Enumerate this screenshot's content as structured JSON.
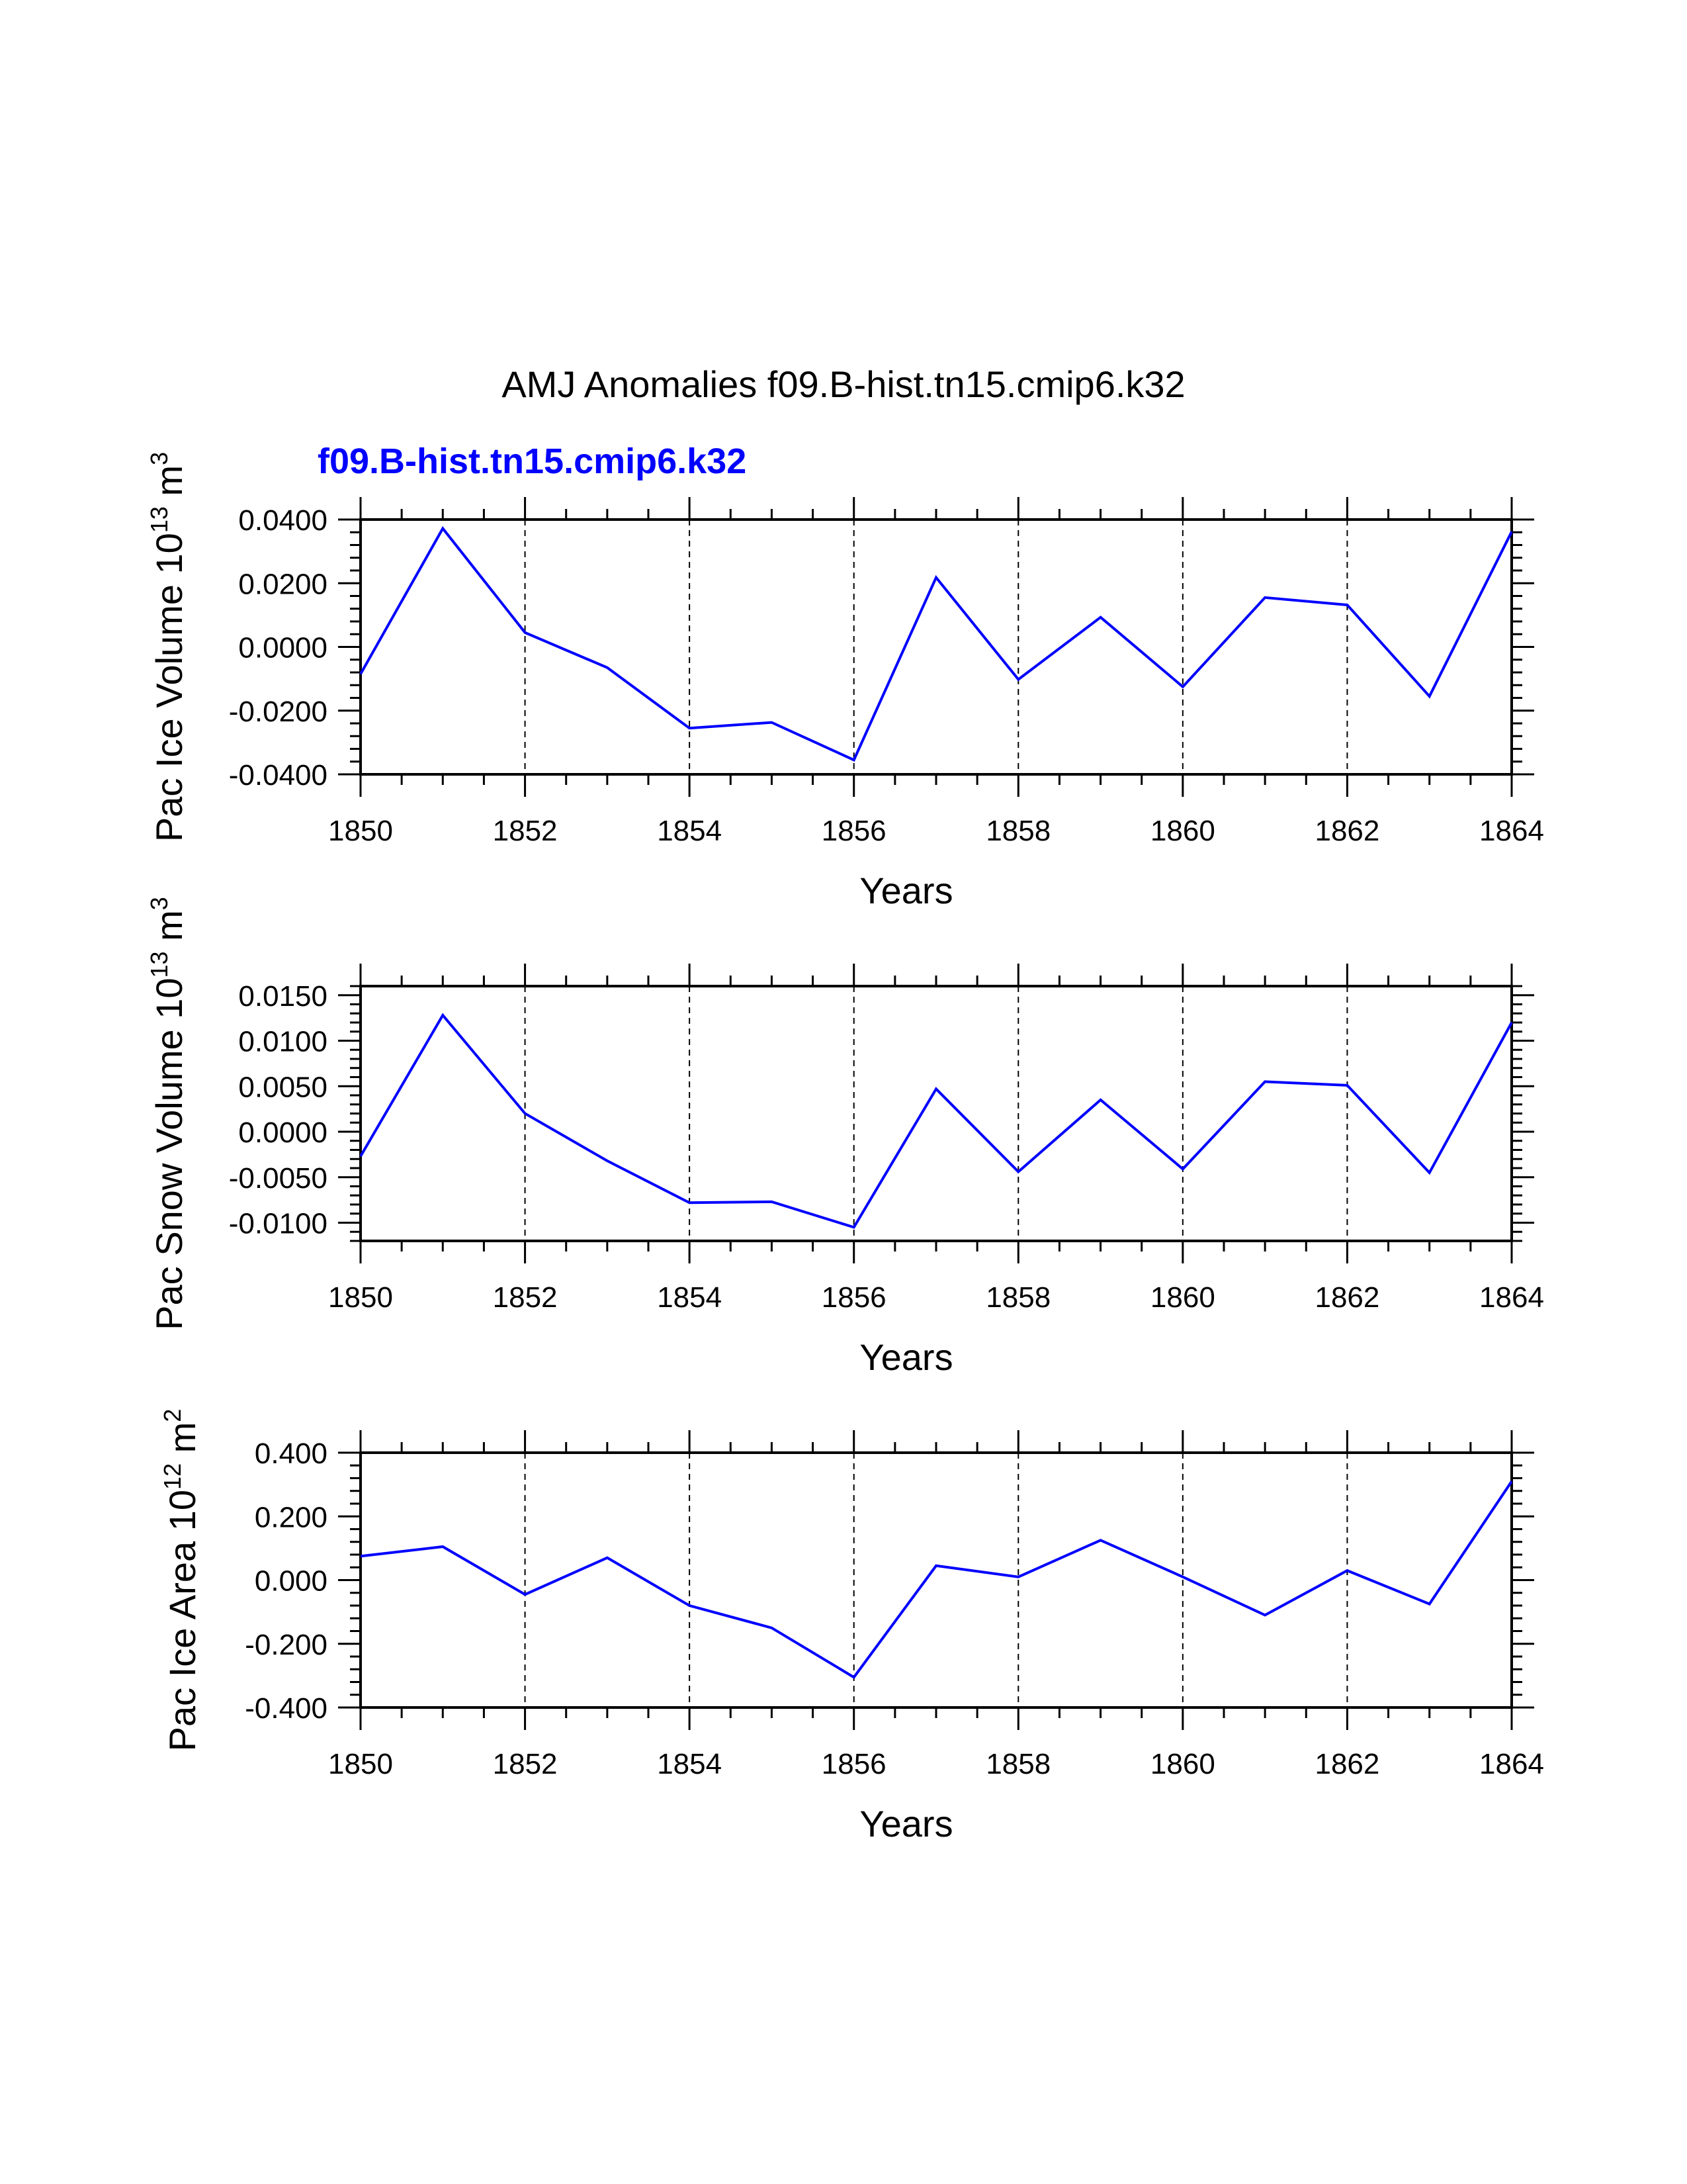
{
  "figure": {
    "title": "AMJ Anomalies f09.B-hist.tn15.cmip6.k32",
    "case_label": "f09.B-hist.tn15.cmip6.k32",
    "case_color": "#0000ff",
    "line_color": "#0000ff"
  },
  "chart_data": [
    {
      "type": "line",
      "ylabel": "Pac Ice Volume 10",
      "ylabel_exp": "13",
      "ylabel_unit": " m",
      "ylabel_unit_exp": "3",
      "xlabel": "Years",
      "xlim": [
        1850,
        1864
      ],
      "ylim": [
        -0.04,
        0.04
      ],
      "yticks": [
        0.04,
        0.02,
        0.0,
        -0.02,
        -0.04
      ],
      "ytick_labels": [
        "0.0400",
        "0.0200",
        "0.0000",
        "-0.0200",
        "-0.0400"
      ],
      "xticks": [
        1850,
        1852,
        1854,
        1856,
        1858,
        1860,
        1862,
        1864
      ],
      "xtick_labels": [
        "1850",
        "1852",
        "1854",
        "1856",
        "1858",
        "1860",
        "1862",
        "1864"
      ],
      "grid_x": [
        1852,
        1854,
        1856,
        1858,
        1860,
        1862
      ],
      "series": [
        {
          "name": "f09.B-hist.tn15.cmip6.k32",
          "x": [
            1850,
            1851,
            1852,
            1853,
            1854,
            1855,
            1856,
            1857,
            1858,
            1859,
            1860,
            1861,
            1862,
            1863,
            1864
          ],
          "values": [
            -0.0085,
            0.0372,
            0.0045,
            -0.0065,
            -0.0255,
            -0.0237,
            -0.0355,
            0.0218,
            -0.0102,
            0.0093,
            -0.0125,
            0.0155,
            0.0132,
            -0.0155,
            0.0362
          ]
        }
      ]
    },
    {
      "type": "line",
      "ylabel": "Pac Snow Volume 10",
      "ylabel_exp": "13",
      "ylabel_unit": " m",
      "ylabel_unit_exp": "3",
      "xlabel": "Years",
      "xlim": [
        1850,
        1864
      ],
      "ylim": [
        -0.012,
        0.016
      ],
      "yticks": [
        0.015,
        0.01,
        0.005,
        0.0,
        -0.005,
        -0.01
      ],
      "ytick_labels": [
        "0.0150",
        "0.0100",
        "0.0050",
        "0.0000",
        "-0.0050",
        "-0.0100"
      ],
      "xticks": [
        1850,
        1852,
        1854,
        1856,
        1858,
        1860,
        1862,
        1864
      ],
      "xtick_labels": [
        "1850",
        "1852",
        "1854",
        "1856",
        "1858",
        "1860",
        "1862",
        "1864"
      ],
      "grid_x": [
        1852,
        1854,
        1856,
        1858,
        1860,
        1862
      ],
      "series": [
        {
          "name": "f09.B-hist.tn15.cmip6.k32",
          "x": [
            1850,
            1851,
            1852,
            1853,
            1854,
            1855,
            1856,
            1857,
            1858,
            1859,
            1860,
            1861,
            1862,
            1863,
            1864
          ],
          "values": [
            -0.0027,
            0.0128,
            0.002,
            -0.0032,
            -0.0078,
            -0.0077,
            -0.0105,
            0.0047,
            -0.0044,
            0.0035,
            -0.0041,
            0.0055,
            0.0051,
            -0.0045,
            0.012
          ]
        }
      ]
    },
    {
      "type": "line",
      "ylabel": "Pac Ice Area 10",
      "ylabel_exp": "12",
      "ylabel_unit": " m",
      "ylabel_unit_exp": "2",
      "xlabel": "Years",
      "xlim": [
        1850,
        1864
      ],
      "ylim": [
        -0.4,
        0.4
      ],
      "yticks": [
        0.4,
        0.2,
        0.0,
        -0.2,
        -0.4
      ],
      "ytick_labels": [
        "0.400",
        "0.200",
        "0.000",
        "-0.200",
        "-0.400"
      ],
      "xticks": [
        1850,
        1852,
        1854,
        1856,
        1858,
        1860,
        1862,
        1864
      ],
      "xtick_labels": [
        "1850",
        "1852",
        "1854",
        "1856",
        "1858",
        "1860",
        "1862",
        "1864"
      ],
      "grid_x": [
        1852,
        1854,
        1856,
        1858,
        1860,
        1862
      ],
      "series": [
        {
          "name": "f09.B-hist.tn15.cmip6.k32",
          "x": [
            1850,
            1851,
            1852,
            1853,
            1854,
            1855,
            1856,
            1857,
            1858,
            1859,
            1860,
            1861,
            1862,
            1863,
            1864
          ],
          "values": [
            0.075,
            0.105,
            -0.045,
            0.07,
            -0.08,
            -0.15,
            -0.305,
            0.045,
            0.01,
            0.125,
            0.01,
            -0.11,
            0.03,
            -0.075,
            0.31
          ]
        }
      ]
    }
  ]
}
